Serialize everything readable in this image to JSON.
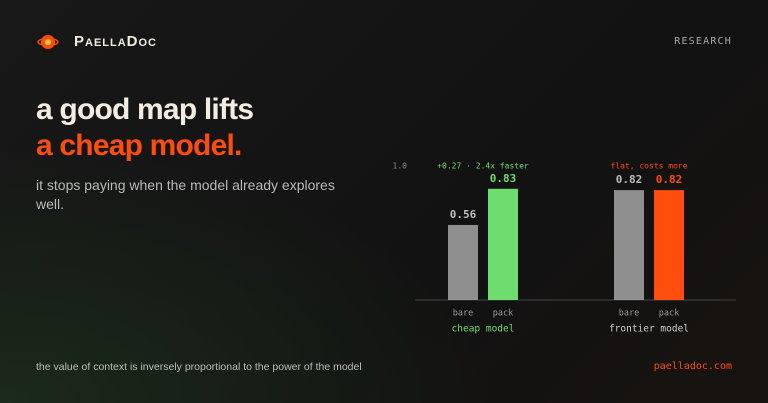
{
  "brand": {
    "name": "PaellaDoc"
  },
  "nav": {
    "section": "RESEARCH"
  },
  "headline": {
    "line1": "a good map lifts",
    "line2": "a cheap model.",
    "subtitle": "it stops paying when the model already explores well."
  },
  "chart_data": {
    "type": "bar",
    "categories": [
      "cheap model",
      "frontier model"
    ],
    "category_colors": [
      "#6fdc6f",
      "#cfcfcf"
    ],
    "series": [
      {
        "name": "bare",
        "color": "#8f8f8f",
        "values": [
          0.56,
          0.82
        ]
      },
      {
        "name": "pack",
        "colors": [
          "#6fdc6f",
          "#ff4d0d"
        ],
        "values": [
          0.83,
          0.82
        ]
      }
    ],
    "ylim": [
      0,
      1
    ],
    "yticks": [
      {
        "value": 1,
        "label": "1.0"
      }
    ],
    "annotations": [
      {
        "text": "+0.27 · 2.4x faster",
        "color": "#6fdc6f"
      },
      {
        "text": "flat, costs more",
        "color": "#ff4d0d"
      }
    ],
    "grid": false
  },
  "footer": {
    "tagline": "the value of context is inversely proportional to the power of the model",
    "url": "paelladoc.com"
  }
}
